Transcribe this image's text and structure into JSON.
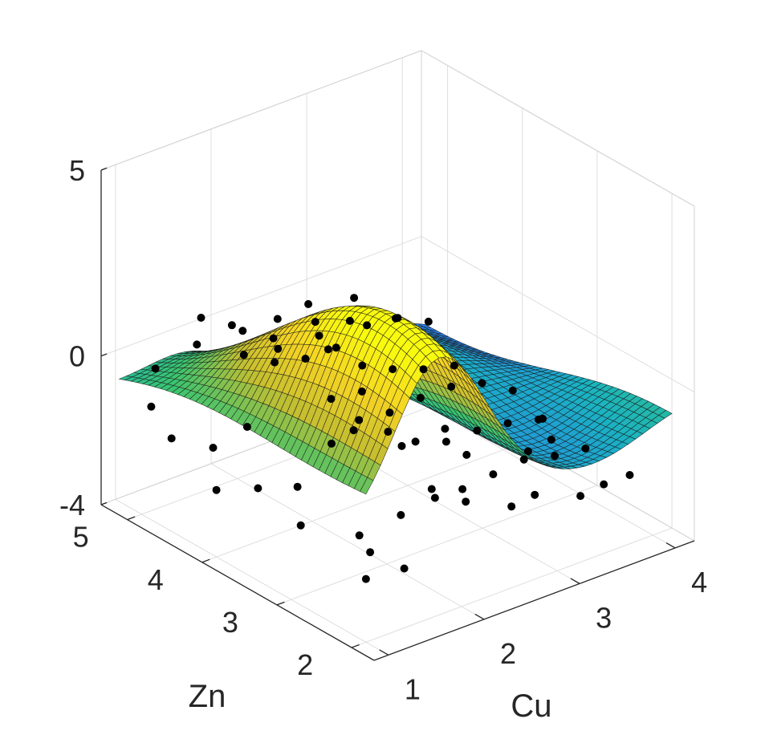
{
  "chart_data": {
    "type": "surface",
    "title": "",
    "xlabel": "Cu",
    "ylabel": "Zn",
    "zlabel": "",
    "x_ticks": [
      "1",
      "2",
      "3",
      "4"
    ],
    "y_ticks": [
      "2",
      "3",
      "4",
      "5"
    ],
    "z_ticks": [
      "-4",
      "0",
      "5"
    ],
    "xlim": [
      0.85,
      4.2
    ],
    "ylim": [
      1.7,
      5.35
    ],
    "zlim": [
      -4,
      5
    ],
    "grid": true,
    "colormap": [
      "#3e26a8",
      "#2a78f0",
      "#1ab3c2",
      "#38c471",
      "#c7bf30",
      "#f5d324",
      "#f9fb0e"
    ],
    "surface_model": {
      "base": -1.2,
      "peak_height": 3.7,
      "peak_center": {
        "Cu": 1.75,
        "Zn": 2.9
      },
      "peak_spread": {
        "Cu": 0.45,
        "Zn": 1.6
      }
    },
    "points": [
      {
        "Cu": 1.0,
        "Zn": 2.0,
        "Z": -2.3
      },
      {
        "Cu": 1.2,
        "Zn": 2.2,
        "Z": -2.0
      },
      {
        "Cu": 1.4,
        "Zn": 2.0,
        "Z": -2.4
      },
      {
        "Cu": 1.6,
        "Zn": 2.3,
        "Z": -1.5
      },
      {
        "Cu": 1.8,
        "Zn": 2.1,
        "Z": -1.0
      },
      {
        "Cu": 2.0,
        "Zn": 2.4,
        "Z": -1.3
      },
      {
        "Cu": 2.2,
        "Zn": 2.2,
        "Z": -1.6
      },
      {
        "Cu": 2.4,
        "Zn": 2.5,
        "Z": -1.8
      },
      {
        "Cu": 2.6,
        "Zn": 2.1,
        "Z": -2.0
      },
      {
        "Cu": 2.8,
        "Zn": 2.6,
        "Z": -1.9
      },
      {
        "Cu": 3.0,
        "Zn": 2.3,
        "Z": -2.3
      },
      {
        "Cu": 3.2,
        "Zn": 2.7,
        "Z": -2.0
      },
      {
        "Cu": 3.4,
        "Zn": 2.2,
        "Z": -2.6
      },
      {
        "Cu": 3.6,
        "Zn": 2.8,
        "Z": -2.4
      },
      {
        "Cu": 3.8,
        "Zn": 2.4,
        "Z": -2.9
      },
      {
        "Cu": 4.0,
        "Zn": 2.9,
        "Z": -2.7
      },
      {
        "Cu": 4.15,
        "Zn": 2.5,
        "Z": -3.1
      },
      {
        "Cu": 1.1,
        "Zn": 3.0,
        "Z": -2.1
      },
      {
        "Cu": 1.3,
        "Zn": 3.3,
        "Z": -1.6
      },
      {
        "Cu": 1.5,
        "Zn": 3.1,
        "Z": -0.4
      },
      {
        "Cu": 1.7,
        "Zn": 3.4,
        "Z": 1.6
      },
      {
        "Cu": 1.9,
        "Zn": 3.2,
        "Z": 1.2
      },
      {
        "Cu": 2.1,
        "Zn": 3.5,
        "Z": -0.8
      },
      {
        "Cu": 2.3,
        "Zn": 3.0,
        "Z": -1.0
      },
      {
        "Cu": 2.5,
        "Zn": 3.6,
        "Z": -1.1
      },
      {
        "Cu": 2.7,
        "Zn": 3.1,
        "Z": -1.5
      },
      {
        "Cu": 2.9,
        "Zn": 3.7,
        "Z": -1.2
      },
      {
        "Cu": 3.1,
        "Zn": 3.2,
        "Z": -1.7
      },
      {
        "Cu": 3.3,
        "Zn": 3.8,
        "Z": -1.4
      },
      {
        "Cu": 3.5,
        "Zn": 3.3,
        "Z": -2.0
      },
      {
        "Cu": 3.7,
        "Zn": 3.9,
        "Z": -1.8
      },
      {
        "Cu": 3.9,
        "Zn": 3.4,
        "Z": -2.4
      },
      {
        "Cu": 4.1,
        "Zn": 4.0,
        "Z": -2.5
      },
      {
        "Cu": 1.0,
        "Zn": 4.0,
        "Z": -2.2
      },
      {
        "Cu": 1.2,
        "Zn": 4.3,
        "Z": -1.6
      },
      {
        "Cu": 1.4,
        "Zn": 4.1,
        "Z": -1.0
      },
      {
        "Cu": 1.6,
        "Zn": 4.4,
        "Z": 0.4
      },
      {
        "Cu": 1.8,
        "Zn": 4.2,
        "Z": 0.6
      },
      {
        "Cu": 2.0,
        "Zn": 4.5,
        "Z": -0.3
      },
      {
        "Cu": 2.2,
        "Zn": 4.0,
        "Z": -0.9
      },
      {
        "Cu": 2.4,
        "Zn": 4.6,
        "Z": -0.7
      },
      {
        "Cu": 2.6,
        "Zn": 4.1,
        "Z": -1.2
      },
      {
        "Cu": 2.8,
        "Zn": 4.7,
        "Z": -0.9
      },
      {
        "Cu": 3.0,
        "Zn": 4.2,
        "Z": -1.1
      },
      {
        "Cu": 3.2,
        "Zn": 4.8,
        "Z": -0.8
      },
      {
        "Cu": 3.4,
        "Zn": 4.3,
        "Z": -1.6
      },
      {
        "Cu": 3.6,
        "Zn": 4.9,
        "Z": -1.1
      },
      {
        "Cu": 3.8,
        "Zn": 4.4,
        "Z": -2.0
      },
      {
        "Cu": 4.0,
        "Zn": 5.0,
        "Z": -1.7
      },
      {
        "Cu": 1.1,
        "Zn": 5.0,
        "Z": -1.2
      },
      {
        "Cu": 1.3,
        "Zn": 5.2,
        "Z": -0.6
      },
      {
        "Cu": 1.5,
        "Zn": 4.9,
        "Z": 0.2
      },
      {
        "Cu": 1.7,
        "Zn": 5.1,
        "Z": 0.5
      },
      {
        "Cu": 1.9,
        "Zn": 4.8,
        "Z": 0.3
      },
      {
        "Cu": 2.1,
        "Zn": 5.2,
        "Z": -0.2
      },
      {
        "Cu": 2.3,
        "Zn": 4.9,
        "Z": -0.4
      },
      {
        "Cu": 2.5,
        "Zn": 5.1,
        "Z": -0.3
      },
      {
        "Cu": 2.7,
        "Zn": 4.8,
        "Z": -0.6
      },
      {
        "Cu": 2.9,
        "Zn": 5.2,
        "Z": -0.4
      },
      {
        "Cu": 3.1,
        "Zn": 4.9,
        "Z": -0.7
      },
      {
        "Cu": 3.3,
        "Zn": 5.1,
        "Z": -0.5
      },
      {
        "Cu": 3.5,
        "Zn": 4.8,
        "Z": -0.9
      },
      {
        "Cu": 1.0,
        "Zn": 4.6,
        "Z": -1.5
      },
      {
        "Cu": 1.2,
        "Zn": 3.7,
        "Z": -2.0
      },
      {
        "Cu": 1.4,
        "Zn": 2.6,
        "Z": -2.2
      },
      {
        "Cu": 2.0,
        "Zn": 2.8,
        "Z": -0.6
      },
      {
        "Cu": 2.2,
        "Zn": 3.7,
        "Z": -1.4
      },
      {
        "Cu": 2.6,
        "Zn": 2.7,
        "Z": -1.3
      },
      {
        "Cu": 3.0,
        "Zn": 3.5,
        "Z": -1.9
      },
      {
        "Cu": 3.4,
        "Zn": 2.9,
        "Z": -2.2
      },
      {
        "Cu": 3.8,
        "Zn": 3.1,
        "Z": -2.5
      },
      {
        "Cu": 4.1,
        "Zn": 3.6,
        "Z": -2.8
      },
      {
        "Cu": 1.7,
        "Zn": 2.6,
        "Z": 0.3
      },
      {
        "Cu": 1.8,
        "Zn": 3.7,
        "Z": 1.9
      }
    ]
  }
}
